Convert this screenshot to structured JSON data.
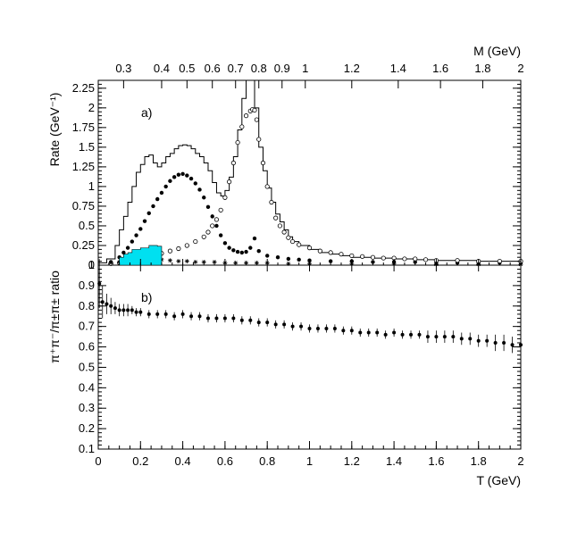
{
  "chart_data": [
    {
      "panel": "a",
      "panel_label": "a)",
      "type": "line",
      "ylabel": "Rate (GeV⁻¹)",
      "ylim": [
        0,
        2.35
      ],
      "yticks": [
        "0",
        "0.25",
        "0.5",
        "0.75",
        "1",
        "1.25",
        "1.5",
        "1.75",
        "2",
        "2.25"
      ],
      "xlim": [
        0,
        2
      ],
      "top_axis": {
        "label": "M (GeV)",
        "ticks": [
          {
            "label": "0.3",
            "T": 0.12
          },
          {
            "label": "0.4",
            "T": 0.3
          },
          {
            "label": "0.5",
            "T": 0.42
          },
          {
            "label": "0.6",
            "T": 0.54
          },
          {
            "label": "0.7",
            "T": 0.65
          },
          {
            "label": "0.8",
            "T": 0.76
          },
          {
            "label": "0.9",
            "T": 0.87
          },
          {
            "label": "1",
            "T": 0.98
          },
          {
            "label": "1.2",
            "T": 1.2
          },
          {
            "label": "1.4",
            "T": 1.42
          },
          {
            "label": "1.6",
            "T": 1.62
          },
          {
            "label": "1.8",
            "T": 1.82
          },
          {
            "label": "2",
            "T": 2.0
          }
        ]
      },
      "series": [
        {
          "name": "total",
          "style": "histogram",
          "x": [
            0,
            0.04,
            0.08,
            0.1,
            0.12,
            0.14,
            0.16,
            0.18,
            0.2,
            0.22,
            0.24,
            0.26,
            0.28,
            0.3,
            0.32,
            0.34,
            0.36,
            0.38,
            0.4,
            0.42,
            0.44,
            0.46,
            0.48,
            0.5,
            0.52,
            0.54,
            0.56,
            0.58,
            0.6,
            0.62,
            0.64,
            0.66,
            0.68,
            0.7,
            0.72,
            0.74,
            0.76,
            0.78,
            0.8,
            0.82,
            0.84,
            0.86,
            0.88,
            0.9,
            0.92,
            0.95,
            1.0,
            1.05,
            1.1,
            1.15,
            1.2,
            1.3,
            1.4,
            1.5,
            1.6,
            1.7,
            1.8,
            1.9,
            2.0
          ],
          "values": [
            0.03,
            0.08,
            0.25,
            0.45,
            0.62,
            0.8,
            1.0,
            1.18,
            1.28,
            1.38,
            1.4,
            1.3,
            1.25,
            1.3,
            1.38,
            1.42,
            1.48,
            1.52,
            1.53,
            1.52,
            1.48,
            1.42,
            1.38,
            1.3,
            1.2,
            1.05,
            0.92,
            0.88,
            0.95,
            1.12,
            1.38,
            1.72,
            2.12,
            2.35,
            2.45,
            2.0,
            1.5,
            1.2,
            0.98,
            0.8,
            0.65,
            0.55,
            0.45,
            0.36,
            0.3,
            0.25,
            0.2,
            0.16,
            0.14,
            0.12,
            0.1,
            0.09,
            0.08,
            0.07,
            0.06,
            0.06,
            0.05,
            0.05,
            0.05
          ]
        },
        {
          "name": "filled-circles",
          "style": "markers-filled",
          "x": [
            0.06,
            0.1,
            0.12,
            0.14,
            0.16,
            0.18,
            0.2,
            0.22,
            0.24,
            0.26,
            0.28,
            0.3,
            0.32,
            0.34,
            0.36,
            0.38,
            0.4,
            0.42,
            0.44,
            0.46,
            0.48,
            0.5,
            0.52,
            0.54,
            0.56,
            0.58,
            0.6,
            0.62,
            0.64,
            0.66,
            0.68,
            0.7,
            0.72,
            0.74,
            0.76,
            0.8,
            0.85,
            0.9,
            0.95,
            1.0,
            1.1,
            1.2,
            1.3,
            1.4,
            1.5,
            1.6,
            1.7,
            1.8,
            1.9,
            2.0
          ],
          "values": [
            0.04,
            0.1,
            0.16,
            0.22,
            0.3,
            0.38,
            0.46,
            0.56,
            0.66,
            0.75,
            0.84,
            0.92,
            1.0,
            1.07,
            1.12,
            1.15,
            1.16,
            1.14,
            1.1,
            1.04,
            0.96,
            0.86,
            0.74,
            0.62,
            0.5,
            0.38,
            0.28,
            0.22,
            0.19,
            0.17,
            0.16,
            0.17,
            0.22,
            0.34,
            0.18,
            0.12,
            0.1,
            0.08,
            0.07,
            0.06,
            0.05,
            0.05,
            0.04,
            0.04,
            0.04,
            0.03,
            0.03,
            0.03,
            0.03,
            0.03
          ]
        },
        {
          "name": "open-circles",
          "style": "markers-open",
          "x": [
            0.06,
            0.1,
            0.14,
            0.18,
            0.22,
            0.26,
            0.3,
            0.34,
            0.38,
            0.42,
            0.46,
            0.5,
            0.52,
            0.54,
            0.56,
            0.58,
            0.6,
            0.62,
            0.64,
            0.66,
            0.68,
            0.7,
            0.72,
            0.73,
            0.74,
            0.75,
            0.76,
            0.78,
            0.8,
            0.82,
            0.84,
            0.86,
            0.88,
            0.9,
            0.92,
            0.95,
            1.0,
            1.05,
            1.1,
            1.15,
            1.2,
            1.25,
            1.3,
            1.35,
            1.4,
            1.45,
            1.5,
            1.55,
            1.6,
            1.7,
            1.8,
            1.9,
            2.0
          ],
          "values": [
            0.02,
            0.03,
            0.05,
            0.07,
            0.09,
            0.12,
            0.15,
            0.18,
            0.21,
            0.25,
            0.3,
            0.36,
            0.42,
            0.5,
            0.58,
            0.7,
            0.86,
            1.06,
            1.3,
            1.56,
            1.76,
            1.9,
            1.96,
            1.98,
            1.97,
            1.85,
            1.6,
            1.3,
            1.0,
            0.8,
            0.6,
            0.5,
            0.42,
            0.35,
            0.3,
            0.26,
            0.22,
            0.18,
            0.16,
            0.14,
            0.12,
            0.11,
            0.1,
            0.09,
            0.09,
            0.08,
            0.08,
            0.07,
            0.06,
            0.06,
            0.05,
            0.05,
            0.05
          ]
        },
        {
          "name": "stars",
          "style": "markers-star",
          "x": [
            0.06,
            0.1,
            0.14,
            0.18,
            0.22,
            0.26,
            0.3,
            0.34,
            0.38,
            0.42,
            0.46,
            0.5,
            0.55,
            0.6,
            0.65,
            0.7,
            0.75,
            0.8,
            0.9,
            1.0,
            1.2,
            1.4,
            1.6,
            1.8,
            2.0
          ],
          "values": [
            0.03,
            0.04,
            0.05,
            0.06,
            0.06,
            0.07,
            0.07,
            0.06,
            0.05,
            0.05,
            0.04,
            0.04,
            0.04,
            0.03,
            0.03,
            0.03,
            0.03,
            0.03,
            0.02,
            0.02,
            0.02,
            0.02,
            0.01,
            0.01,
            0.01
          ]
        },
        {
          "name": "cyan-band",
          "style": "filled-hist",
          "color": "#00e0f0",
          "x": [
            0.1,
            0.12,
            0.14,
            0.16,
            0.18,
            0.2,
            0.22,
            0.24,
            0.26,
            0.28,
            0.3
          ],
          "values": [
            0.1,
            0.14,
            0.16,
            0.2,
            0.2,
            0.22,
            0.22,
            0.25,
            0.25,
            0.24,
            0.0
          ]
        }
      ]
    },
    {
      "panel": "b",
      "panel_label": "b)",
      "type": "scatter",
      "ylabel": "π⁺π⁻/π±π± ratio",
      "ylim": [
        0.1,
        1.0
      ],
      "yticks": [
        "0.1",
        "0.2",
        "0.3",
        "0.4",
        "0.5",
        "0.6",
        "0.7",
        "0.8",
        "0.9",
        "1"
      ],
      "xlabel": "T (GeV)",
      "xlim": [
        0,
        2
      ],
      "xticks": [
        "0",
        "0.2",
        "0.4",
        "0.6",
        "0.8",
        "1",
        "1.2",
        "1.4",
        "1.6",
        "1.8",
        "2"
      ],
      "series": [
        {
          "name": "ratio",
          "style": "markers-errorbars",
          "x": [
            0.005,
            0.02,
            0.04,
            0.06,
            0.08,
            0.1,
            0.12,
            0.14,
            0.16,
            0.18,
            0.2,
            0.24,
            0.28,
            0.32,
            0.36,
            0.4,
            0.44,
            0.48,
            0.52,
            0.56,
            0.6,
            0.64,
            0.68,
            0.72,
            0.76,
            0.8,
            0.84,
            0.88,
            0.92,
            0.96,
            1.0,
            1.04,
            1.08,
            1.12,
            1.16,
            1.2,
            1.24,
            1.28,
            1.32,
            1.36,
            1.4,
            1.44,
            1.48,
            1.52,
            1.56,
            1.6,
            1.64,
            1.68,
            1.72,
            1.76,
            1.8,
            1.84,
            1.88,
            1.92,
            1.96,
            2.0
          ],
          "values": [
            0.91,
            0.82,
            0.81,
            0.8,
            0.79,
            0.78,
            0.78,
            0.78,
            0.78,
            0.77,
            0.77,
            0.76,
            0.76,
            0.76,
            0.75,
            0.76,
            0.75,
            0.75,
            0.74,
            0.74,
            0.74,
            0.74,
            0.73,
            0.73,
            0.72,
            0.72,
            0.71,
            0.71,
            0.7,
            0.7,
            0.69,
            0.69,
            0.69,
            0.69,
            0.68,
            0.68,
            0.67,
            0.67,
            0.67,
            0.66,
            0.67,
            0.66,
            0.66,
            0.66,
            0.65,
            0.65,
            0.65,
            0.65,
            0.64,
            0.64,
            0.63,
            0.63,
            0.62,
            0.62,
            0.61,
            0.61
          ],
          "errors": [
            0.12,
            0.08,
            0.05,
            0.04,
            0.03,
            0.03,
            0.03,
            0.03,
            0.02,
            0.02,
            0.02,
            0.02,
            0.02,
            0.02,
            0.02,
            0.02,
            0.02,
            0.02,
            0.02,
            0.02,
            0.02,
            0.02,
            0.02,
            0.02,
            0.02,
            0.02,
            0.02,
            0.02,
            0.02,
            0.02,
            0.02,
            0.02,
            0.02,
            0.02,
            0.02,
            0.02,
            0.02,
            0.02,
            0.02,
            0.02,
            0.02,
            0.02,
            0.02,
            0.02,
            0.03,
            0.03,
            0.03,
            0.03,
            0.03,
            0.03,
            0.03,
            0.03,
            0.04,
            0.04,
            0.04,
            0.04
          ]
        }
      ]
    }
  ]
}
